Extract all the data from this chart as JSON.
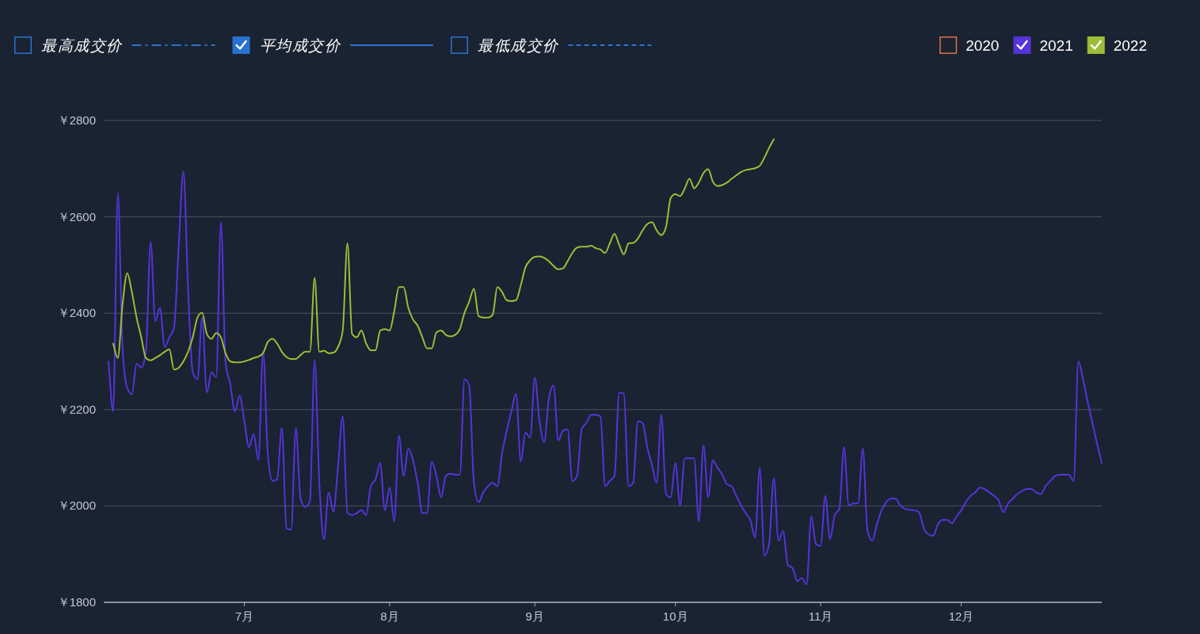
{
  "chart_data": {
    "type": "line",
    "legend": "top",
    "grid": "y",
    "marker": "none",
    "line_style": "solid",
    "xlim": [
      "--06-01",
      "--12-31"
    ],
    "xticks": [
      {
        "value": "--07-01",
        "label": "7月"
      },
      {
        "value": "--08-01",
        "label": "8月"
      },
      {
        "value": "--09-01",
        "label": "9月"
      },
      {
        "value": "--10-01",
        "label": "10月"
      },
      {
        "value": "--11-01",
        "label": "11月"
      },
      {
        "value": "--12-01",
        "label": "12月"
      }
    ],
    "ylim": [
      1800,
      2800
    ],
    "yticks": [
      {
        "value": 1800,
        "label": "￥1800"
      },
      {
        "value": 2000,
        "label": "￥2000"
      },
      {
        "value": 2200,
        "label": "￥2200"
      },
      {
        "value": 2400,
        "label": "￥2400"
      },
      {
        "value": 2600,
        "label": "￥2600"
      },
      {
        "value": 2800,
        "label": "￥2800"
      }
    ],
    "x": [
      "--06-02",
      "--06-03",
      "--06-04",
      "--06-05",
      "--06-06",
      "--06-07",
      "--06-08",
      "--06-09",
      "--06-10",
      "--06-11",
      "--06-12",
      "--06-13",
      "--06-14",
      "--06-15",
      "--06-16",
      "--06-17",
      "--06-18",
      "--06-19",
      "--06-20",
      "--06-21",
      "--06-22",
      "--06-23",
      "--06-24",
      "--06-25",
      "--06-26",
      "--06-27",
      "--06-28",
      "--06-29",
      "--06-30",
      "--07-01",
      "--07-02",
      "--07-03",
      "--07-04",
      "--07-05",
      "--07-06",
      "--07-07",
      "--07-08",
      "--07-09",
      "--07-10",
      "--07-11",
      "--07-12",
      "--07-13",
      "--07-14",
      "--07-15",
      "--07-16",
      "--07-17",
      "--07-18",
      "--07-19",
      "--07-20",
      "--07-21",
      "--07-22",
      "--07-23",
      "--07-24",
      "--07-25",
      "--07-26",
      "--07-27",
      "--07-28",
      "--07-29",
      "--07-30",
      "--07-31",
      "--08-01",
      "--08-02",
      "--08-03",
      "--08-04",
      "--08-05",
      "--08-06",
      "--08-07",
      "--08-08",
      "--08-09",
      "--08-10",
      "--08-11",
      "--08-12",
      "--08-13",
      "--08-14",
      "--08-15",
      "--08-16",
      "--08-17",
      "--08-18",
      "--08-19",
      "--08-20",
      "--08-21",
      "--08-22",
      "--08-23",
      "--08-24",
      "--08-25",
      "--08-26",
      "--08-27",
      "--08-28",
      "--08-29",
      "--08-30",
      "--08-31",
      "--09-01",
      "--09-02",
      "--09-03",
      "--09-04",
      "--09-05",
      "--09-06",
      "--09-07",
      "--09-08",
      "--09-09",
      "--09-10",
      "--09-11",
      "--09-12",
      "--09-13",
      "--09-14",
      "--09-15",
      "--09-16",
      "--09-17",
      "--09-18",
      "--09-19",
      "--09-20",
      "--09-21",
      "--09-22",
      "--09-23",
      "--09-24",
      "--09-25",
      "--09-26",
      "--09-27",
      "--09-28",
      "--09-29",
      "--09-30",
      "--10-01",
      "--10-02",
      "--10-03",
      "--10-04",
      "--10-05",
      "--10-06",
      "--10-07",
      "--10-08",
      "--10-09",
      "--10-10",
      "--10-11",
      "--10-12",
      "--10-13",
      "--10-14",
      "--10-15",
      "--10-16",
      "--10-17",
      "--10-18",
      "--10-19",
      "--10-20",
      "--10-21",
      "--10-22",
      "--10-23",
      "--10-24",
      "--10-25",
      "--10-26",
      "--10-27",
      "--10-28",
      "--10-29",
      "--10-30",
      "--10-31",
      "--11-01",
      "--11-02",
      "--11-03",
      "--11-04",
      "--11-05",
      "--11-06",
      "--11-07",
      "--11-08",
      "--11-09",
      "--11-10",
      "--11-11",
      "--11-12",
      "--11-13",
      "--11-14",
      "--11-15",
      "--11-16",
      "--11-17",
      "--11-18",
      "--11-19",
      "--11-20",
      "--11-21",
      "--11-22",
      "--11-23",
      "--11-24",
      "--11-25",
      "--11-26",
      "--11-27",
      "--11-28",
      "--11-29",
      "--11-30",
      "--12-01",
      "--12-02",
      "--12-03",
      "--12-04",
      "--12-05",
      "--12-06",
      "--12-07",
      "--12-08",
      "--12-09",
      "--12-10",
      "--12-11",
      "--12-12",
      "--12-13",
      "--12-14",
      "--12-15",
      "--12-16",
      "--12-17",
      "--12-18",
      "--12-19",
      "--12-20",
      "--12-21",
      "--12-22",
      "--12-23",
      "--12-24",
      "--12-25",
      "--12-26",
      "--12-27",
      "--12-28",
      "--12-29",
      "--12-30",
      "--12-31"
    ],
    "series": [
      {
        "name": "最高成交价",
        "color": "#2a72d0",
        "line_style": "dashdot",
        "values": [
          null,
          null,
          null,
          null,
          null,
          null,
          null,
          null,
          null,
          null,
          null,
          null,
          null,
          null,
          null,
          null,
          null,
          null,
          null,
          null,
          null,
          null,
          null,
          null,
          null,
          null,
          null,
          null,
          null,
          null,
          null,
          null,
          null,
          null,
          null,
          null,
          null,
          null,
          null,
          null,
          null,
          null,
          null,
          null,
          null,
          null,
          null,
          null,
          null,
          null,
          null,
          null,
          null,
          null,
          null,
          null,
          null,
          null,
          null,
          null,
          null,
          null,
          null,
          null,
          null,
          null,
          null,
          null,
          null,
          null,
          null,
          null,
          null,
          null,
          null,
          null,
          null,
          null,
          null,
          null,
          null,
          null,
          null,
          null,
          null,
          null,
          null,
          null,
          null,
          null,
          null,
          null,
          null,
          null,
          null,
          null,
          null,
          null,
          null,
          null,
          null,
          null,
          null,
          null,
          null,
          null,
          null,
          null,
          null,
          null,
          null,
          null,
          null,
          null,
          null,
          null,
          null,
          null,
          null,
          null,
          null,
          null,
          null,
          null,
          null,
          null,
          null,
          null,
          null,
          null,
          null,
          null,
          null,
          null,
          null,
          null,
          null,
          null,
          null,
          null,
          null,
          null,
          null,
          null,
          null,
          null,
          null,
          null,
          null,
          null,
          null,
          null,
          null,
          null,
          null,
          null,
          null,
          null,
          null,
          null,
          null,
          null,
          null,
          null,
          null,
          null,
          null,
          null,
          null,
          null,
          null,
          null,
          null,
          null,
          null,
          null,
          null,
          null,
          null,
          null,
          null,
          null,
          null,
          null,
          null,
          null,
          null,
          null,
          null,
          null,
          null,
          null,
          null,
          null,
          null,
          null,
          null,
          null,
          null,
          null,
          null,
          null,
          null,
          null,
          null,
          null,
          null,
          null,
          null,
          null,
          null,
          null,
          null
        ]
      },
      {
        "name": "平均成交价",
        "color": "#2a72d0",
        "line_style": "solid",
        "values": [
          null,
          null,
          null,
          null,
          null,
          null,
          null,
          null,
          null,
          null,
          null,
          null,
          null,
          null,
          null,
          null,
          null,
          null,
          null,
          null,
          null,
          null,
          null,
          null,
          null,
          null,
          null,
          null,
          null,
          null,
          null,
          null,
          null,
          null,
          null,
          null,
          null,
          null,
          null,
          null,
          null,
          null,
          null,
          null,
          null,
          null,
          null,
          null,
          null,
          null,
          null,
          null,
          null,
          null,
          null,
          null,
          null,
          null,
          null,
          null,
          null,
          null,
          null,
          null,
          null,
          null,
          null,
          null,
          null,
          null,
          null,
          null,
          null,
          null,
          null,
          null,
          null,
          null,
          null,
          null,
          null,
          null,
          null,
          null,
          null,
          null,
          null,
          null,
          null,
          null,
          null,
          null,
          null,
          null,
          null,
          null,
          null,
          null,
          null,
          null,
          null,
          null,
          null,
          null,
          null,
          null,
          null,
          null,
          null,
          null,
          null,
          null,
          null,
          null,
          null,
          null,
          null,
          null,
          null,
          null,
          null,
          null,
          null,
          null,
          null,
          null,
          null,
          null,
          null,
          null,
          null,
          null,
          null,
          null,
          null,
          null,
          null,
          null,
          null,
          null,
          null,
          null,
          null,
          null,
          null,
          null,
          null,
          null,
          null,
          null,
          null,
          null,
          null,
          null,
          null,
          null,
          null,
          null,
          null,
          null,
          null,
          null,
          null,
          null,
          null,
          null,
          null,
          null,
          null,
          null,
          null,
          null,
          null,
          null,
          null,
          null,
          null,
          null,
          null,
          null,
          null,
          null,
          null,
          null,
          null,
          null,
          null,
          null,
          null,
          null,
          null,
          null,
          null,
          null,
          null,
          null,
          null,
          null,
          null,
          null,
          null,
          null,
          null,
          null,
          null,
          null,
          null,
          null,
          null,
          null,
          null,
          null,
          null
        ]
      },
      {
        "name": "最低成交价",
        "color": "#2a72d0",
        "line_style": "dashed",
        "values": [
          null,
          null,
          null,
          null,
          null,
          null,
          null,
          null,
          null,
          null,
          null,
          null,
          null,
          null,
          null,
          null,
          null,
          null,
          null,
          null,
          null,
          null,
          null,
          null,
          null,
          null,
          null,
          null,
          null,
          null,
          null,
          null,
          null,
          null,
          null,
          null,
          null,
          null,
          null,
          null,
          null,
          null,
          null,
          null,
          null,
          null,
          null,
          null,
          null,
          null,
          null,
          null,
          null,
          null,
          null,
          null,
          null,
          null,
          null,
          null,
          null,
          null,
          null,
          null,
          null,
          null,
          null,
          null,
          null,
          null,
          null,
          null,
          null,
          null,
          null,
          null,
          null,
          null,
          null,
          null,
          null,
          null,
          null,
          null,
          null,
          null,
          null,
          null,
          null,
          null,
          null,
          null,
          null,
          null,
          null,
          null,
          null,
          null,
          null,
          null,
          null,
          null,
          null,
          null,
          null,
          null,
          null,
          null,
          null,
          null,
          null,
          null,
          null,
          null,
          null,
          null,
          null,
          null,
          null,
          null,
          null,
          null,
          null,
          null,
          null,
          null,
          null,
          null,
          null,
          null,
          null,
          null,
          null,
          null,
          null,
          null,
          null,
          null,
          null,
          null,
          null,
          null,
          null,
          null,
          null,
          null,
          null,
          null,
          null,
          null,
          null,
          null,
          null,
          null,
          null,
          null,
          null,
          null,
          null,
          null,
          null,
          null,
          null,
          null,
          null,
          null,
          null,
          null,
          null,
          null,
          null,
          null,
          null,
          null,
          null,
          null,
          null,
          null,
          null,
          null,
          null,
          null,
          null,
          null,
          null,
          null,
          null,
          null,
          null,
          null,
          null,
          null,
          null,
          null,
          null,
          null,
          null,
          null,
          null,
          null,
          null,
          null,
          null,
          null,
          null,
          null,
          null,
          null,
          null,
          null,
          null,
          null,
          null
        ]
      },
      {
        "name": "2020",
        "color": "#e0703f",
        "values": [
          null,
          null,
          null,
          null,
          null,
          null,
          null,
          null,
          null,
          null,
          null,
          null,
          null,
          null,
          null,
          null,
          null,
          null,
          null,
          null,
          null,
          null,
          null,
          null,
          null,
          null,
          null,
          null,
          null,
          null,
          null,
          null,
          null,
          null,
          null,
          null,
          null,
          null,
          null,
          null,
          null,
          null,
          null,
          null,
          null,
          null,
          null,
          null,
          null,
          null,
          null,
          null,
          null,
          null,
          null,
          null,
          null,
          null,
          null,
          null,
          null,
          null,
          null,
          null,
          null,
          null,
          null,
          null,
          null,
          null,
          null,
          null,
          null,
          null,
          null,
          null,
          null,
          null,
          null,
          null,
          null,
          null,
          null,
          null,
          null,
          null,
          null,
          null,
          null,
          null,
          null,
          null,
          null,
          null,
          null,
          null,
          null,
          null,
          null,
          null,
          null,
          null,
          null,
          null,
          null,
          null,
          null,
          null,
          null,
          null,
          null,
          null,
          null,
          null,
          null,
          null,
          null,
          null,
          null,
          null,
          null,
          null,
          null,
          null,
          null,
          null,
          null,
          null,
          null,
          null,
          null,
          null,
          null,
          null,
          null,
          null,
          null,
          null,
          null,
          null,
          null,
          null,
          null,
          null,
          null,
          null,
          null,
          null,
          null,
          null,
          null,
          null,
          null,
          null,
          null,
          null,
          null,
          null,
          null,
          null,
          null,
          null,
          null,
          null,
          null,
          null,
          null,
          null,
          null,
          null,
          null,
          null,
          null,
          null,
          null,
          null,
          null,
          null,
          null,
          null,
          null,
          null,
          null,
          null,
          null,
          null,
          null,
          null,
          null,
          null,
          null,
          null,
          null,
          null,
          null,
          null,
          null,
          null,
          null,
          null,
          null,
          null,
          null,
          null,
          null,
          null,
          null,
          null,
          null,
          null,
          null,
          null,
          null
        ]
      },
      {
        "name": "2021",
        "color": "#5534dc",
        "values": [
          2300,
          2196,
          2649,
          2330,
          2245,
          2232,
          2295,
          2287,
          2320,
          2548,
          2384,
          2411,
          2330,
          2350,
          2370,
          2540,
          2694,
          2450,
          2277,
          2263,
          2391,
          2236,
          2277,
          2267,
          2589,
          2297,
          2253,
          2196,
          2229,
          2176,
          2122,
          2149,
          2095,
          2320,
          2110,
          2052,
          2055,
          2162,
          1954,
          1951,
          2162,
          2015,
          1998,
          2010,
          2303,
          2050,
          1931,
          2028,
          1988,
          2082,
          2186,
          1985,
          1981,
          1985,
          1991,
          1981,
          2041,
          2055,
          2089,
          1991,
          2038,
          1968,
          2146,
          2062,
          2119,
          2095,
          2048,
          1985,
          1985,
          2092,
          2062,
          2018,
          2062,
          2067,
          2065,
          2065,
          2263,
          2250,
          2048,
          2008,
          2028,
          2041,
          2048,
          2041,
          2109,
          2156,
          2196,
          2233,
          2092,
          2152,
          2142,
          2266,
          2176,
          2132,
          2223,
          2250,
          2136,
          2156,
          2159,
          2052,
          2062,
          2159,
          2172,
          2189,
          2189,
          2186,
          2041,
          2052,
          2062,
          2235,
          2233,
          2041,
          2048,
          2176,
          2172,
          2122,
          2085,
          2048,
          2189,
          2025,
          2018,
          2089,
          2001,
          2099,
          2099,
          2099,
          1968,
          2126,
          2018,
          2095,
          2079,
          2065,
          2045,
          2041,
          2021,
          2001,
          1985,
          1971,
          1934,
          2079,
          1897,
          1921,
          2058,
          1928,
          1948,
          1877,
          1871,
          1844,
          1850,
          1837,
          1978,
          1921,
          1917,
          2021,
          1931,
          1981,
          1994,
          2122,
          2001,
          2005,
          2005,
          2119,
          1948,
          1928,
          1961,
          1991,
          2008,
          2015,
          2015,
          2001,
          1994,
          1992,
          1991,
          1987,
          1954,
          1941,
          1938,
          1961,
          1971,
          1971,
          1964,
          1978,
          1991,
          2008,
          2021,
          2028,
          2038,
          2035,
          2028,
          2021,
          2011,
          1987,
          2005,
          2015,
          2025,
          2031,
          2035,
          2035,
          2028,
          2025,
          2041,
          2052,
          2062,
          2065,
          2065,
          2065,
          2052,
          2300,
          2263,
          2216,
          2172,
          2129,
          2089
        ]
      },
      {
        "name": "2022",
        "color": "#9dbd36",
        "values": [
          null,
          2337,
          2307,
          2417,
          2483,
          2444,
          2391,
          2350,
          2307,
          2302,
          2307,
          2313,
          2320,
          2325,
          2283,
          2287,
          2300,
          2320,
          2350,
          2391,
          2401,
          2357,
          2347,
          2359,
          2350,
          2317,
          2300,
          2298,
          2298,
          2300,
          2303,
          2307,
          2310,
          2317,
          2340,
          2347,
          2337,
          2320,
          2309,
          2305,
          2305,
          2313,
          2320,
          2320,
          2473,
          2320,
          2322,
          2317,
          2318,
          2330,
          2364,
          2545,
          2357,
          2350,
          2364,
          2337,
          2323,
          2323,
          2364,
          2367,
          2364,
          2404,
          2454,
          2454,
          2411,
          2387,
          2374,
          2350,
          2327,
          2327,
          2360,
          2364,
          2355,
          2352,
          2355,
          2367,
          2401,
          2424,
          2451,
          2394,
          2391,
          2391,
          2397,
          2454,
          2444,
          2427,
          2425,
          2427,
          2458,
          2495,
          2510,
          2517,
          2518,
          2515,
          2508,
          2498,
          2491,
          2493,
          2508,
          2525,
          2536,
          2538,
          2538,
          2540,
          2535,
          2532,
          2525,
          2545,
          2565,
          2542,
          2522,
          2545,
          2546,
          2555,
          2572,
          2585,
          2589,
          2572,
          2562,
          2579,
          2639,
          2647,
          2643,
          2659,
          2679,
          2659,
          2671,
          2691,
          2699,
          2673,
          2664,
          2666,
          2671,
          2679,
          2686,
          2693,
          2697,
          2699,
          2701,
          2706,
          2723,
          2743,
          2761,
          null,
          null,
          null,
          null,
          null,
          null,
          null,
          null,
          null,
          null,
          null,
          null,
          null,
          null,
          null,
          null,
          null,
          null,
          null,
          null,
          null,
          null,
          null,
          null,
          null,
          null,
          null,
          null,
          null,
          null,
          null,
          null,
          null,
          null,
          null,
          null,
          null,
          null,
          null,
          null,
          null,
          null,
          null,
          null,
          null,
          null,
          null,
          null,
          null,
          null,
          null,
          null,
          null,
          null,
          null,
          null,
          null,
          null,
          null,
          null,
          null,
          null,
          null,
          null,
          null,
          null,
          null,
          null,
          null,
          null
        ]
      }
    ]
  }
}
